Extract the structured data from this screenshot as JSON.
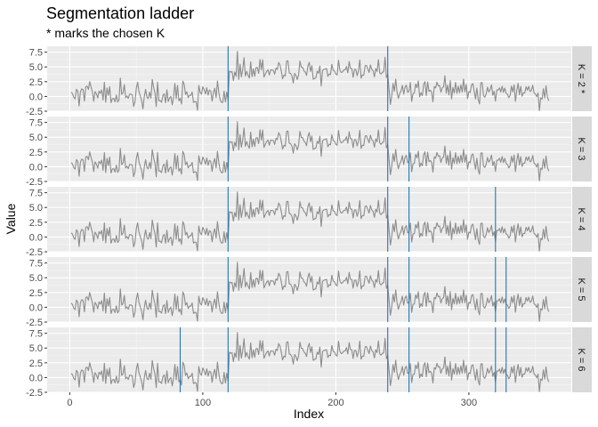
{
  "chart_data": {
    "type": "line",
    "title": "Segmentation ladder",
    "subtitle": "* marks the chosen K",
    "xlabel": "Index",
    "ylabel": "Value",
    "xlim": [
      -17,
      377
    ],
    "ylim": [
      -2.5,
      8.5
    ],
    "x_ticks": [
      0,
      100,
      200,
      300
    ],
    "y_ticks": [
      -2.5,
      0.0,
      2.5,
      5.0,
      7.5
    ],
    "y_tick_labels": [
      "-2.5",
      "0.0",
      "2.5",
      "5.0",
      "7.5"
    ],
    "grid": true,
    "series_color": "#8c8c8c",
    "changepoint_color": "#1f78b4",
    "panel_background": "#ebebeb",
    "strip_background": "#d9d9d9",
    "series": {
      "n": 360,
      "segment_means": [
        {
          "from": 1,
          "to": 119,
          "mean": 0.3
        },
        {
          "from": 120,
          "to": 239,
          "mean": 4.3
        },
        {
          "from": 240,
          "to": 360,
          "mean": 0.9
        }
      ],
      "noise_sd": 1.1
    },
    "panels": [
      {
        "label": "K = 2 *",
        "changepoints": [
          119,
          239
        ]
      },
      {
        "label": "K = 3",
        "changepoints": [
          119,
          239,
          255
        ]
      },
      {
        "label": "K = 4",
        "changepoints": [
          119,
          239,
          255,
          320
        ]
      },
      {
        "label": "K = 5",
        "changepoints": [
          119,
          239,
          255,
          320,
          328
        ]
      },
      {
        "label": "K = 6",
        "changepoints": [
          83,
          119,
          239,
          255,
          320,
          328
        ]
      }
    ]
  }
}
